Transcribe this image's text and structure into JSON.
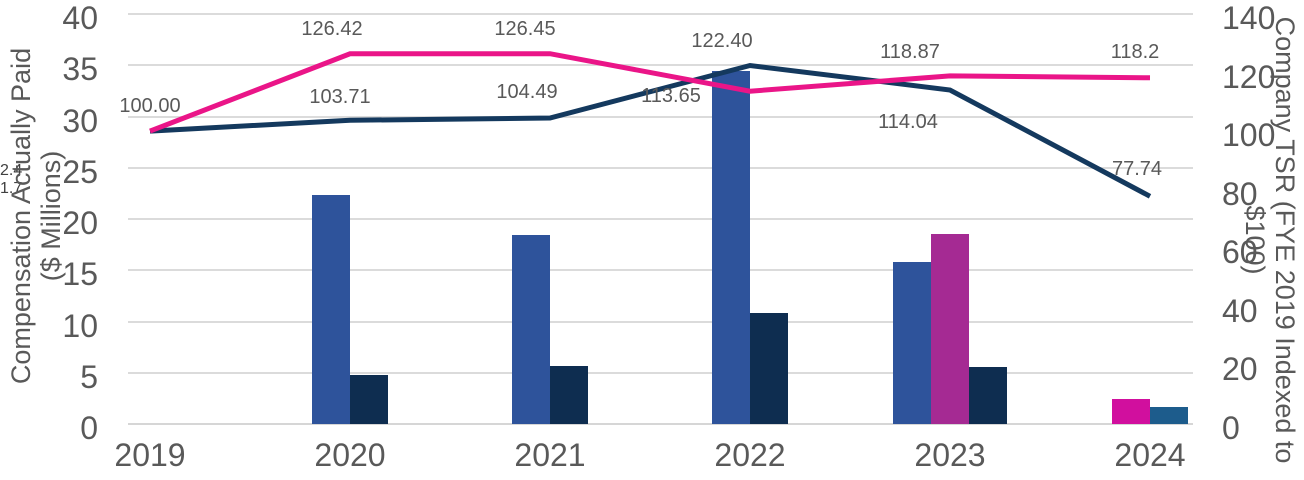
{
  "chart_data": {
    "type": "combo-bar-line",
    "title": "",
    "categories": [
      "2019",
      "2020",
      "2021",
      "2022",
      "2023",
      "2024"
    ],
    "left_axis": {
      "title_line1": "Compensation Actually Paid",
      "title_line2": "($ Millions)",
      "min": 0,
      "max": 40,
      "step": 5,
      "tick_labels": [
        "0",
        "5",
        "10",
        "15",
        "20",
        "25",
        "30",
        "35",
        "40"
      ]
    },
    "right_axis": {
      "title": "Company TSR (FYE 2019 Indexed to $100)",
      "min": 0,
      "max": 140,
      "step": 20,
      "tick_labels": [
        "0",
        "20",
        "40",
        "60",
        "80",
        "100",
        "120",
        "140"
      ]
    },
    "bar_series": [
      {
        "name": "cap-bar-royal-blue",
        "color": "#2E539B",
        "label_placement": "inside",
        "label_color": "#FFFFFF",
        "values": {
          "2020": 22.3,
          "2021": 18.4,
          "2022": 34.4,
          "2023": 15.8
        },
        "value_labels": {
          "2020": "22.3",
          "2021": "18.4",
          "2022": "34.4",
          "2023": "15.8"
        }
      },
      {
        "name": "cap-bar-purple",
        "color": "#A52A93",
        "label_placement": "inside",
        "label_color": "#FFFFFF",
        "values": {
          "2023": 18.5
        },
        "value_labels": {
          "2023": "18.5"
        }
      },
      {
        "name": "cap-bar-magenta",
        "color": "#D10F9E",
        "label_placement": "outside",
        "label_color": "#404040",
        "values": {
          "2024": 2.4
        },
        "value_labels": {
          "2024": "2.4"
        }
      },
      {
        "name": "cap-bar-steel-blue",
        "color": "#1D5C8C",
        "label_placement": "outside",
        "label_color": "#404040",
        "values": {
          "2024": 1.7
        },
        "value_labels": {
          "2024": "1.7"
        }
      },
      {
        "name": "cap-bar-navy",
        "color": "#0E2D50",
        "label_placement": "inside",
        "label_color": "#FFFFFF",
        "values": {
          "2020": 4.8,
          "2021": 5.7,
          "2022": 10.8,
          "2023": 5.6
        },
        "value_labels": {
          "2020": "4.8",
          "2021": "5.7",
          "2022": "10.8",
          "2023": "5.6"
        }
      }
    ],
    "line_series": [
      {
        "name": "tsr-line-navy",
        "color": "#14395E",
        "values": [
          100.0,
          103.71,
          104.49,
          122.4,
          114.04,
          77.74
        ],
        "point_labels": [
          null,
          "103.71",
          "104.49",
          "122.40",
          "114.04",
          "77.74"
        ]
      },
      {
        "name": "tsr-line-magenta",
        "color": "#EA1588",
        "values": [
          100.0,
          126.42,
          126.45,
          113.65,
          118.87,
          118.2
        ],
        "point_labels": [
          "100.00",
          "126.42",
          "126.45",
          "113.65",
          "118.87",
          "118.2"
        ]
      }
    ],
    "styles": {
      "axis_text_color": "#595959",
      "gridline_color": "#DBDBDB",
      "baseline_color": "#D6D6D6",
      "data_label_color": "#595959"
    },
    "layout_hints": {
      "grid": "horizontal-only",
      "legend": "none",
      "left_range": [
        0,
        40
      ],
      "right_range": [
        0,
        140
      ]
    }
  }
}
